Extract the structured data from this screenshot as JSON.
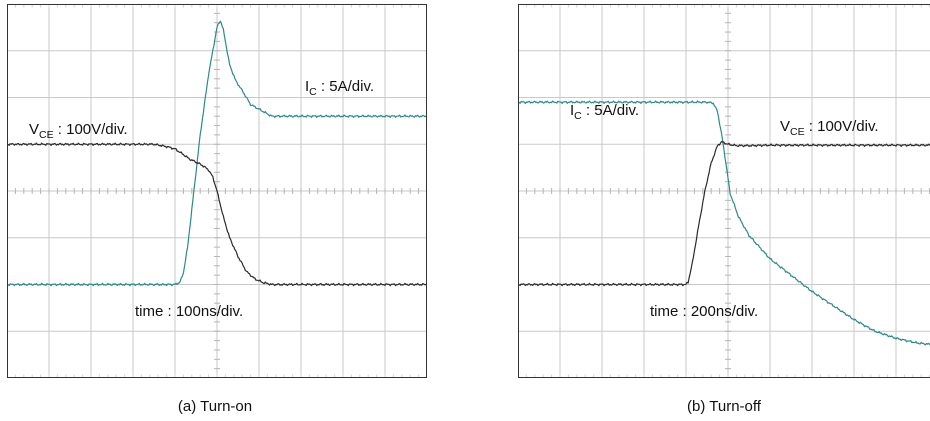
{
  "chart_data": [
    {
      "type": "line",
      "title": "(a) Turn-on",
      "grid": true,
      "grid_divisions": {
        "x": 10,
        "y": 8
      },
      "annotations": {
        "ic": {
          "main": "I",
          "sub": "C",
          "rest": " : 5A/div."
        },
        "vce": {
          "main": "V",
          "sub": "CE",
          "rest": " : 100V/div."
        },
        "time": "time : 100ns/div."
      },
      "xlim": [
        0,
        10
      ],
      "ylim": [
        -4,
        4
      ],
      "series": [
        {
          "color": "#2a8a8a",
          "x": [
            0,
            4.0,
            4.12,
            4.2,
            4.3,
            4.45,
            4.6,
            4.8,
            5.0,
            5.08,
            5.15,
            5.3,
            5.45,
            5.6,
            5.8,
            6.0,
            6.2,
            6.3,
            7.0,
            8.0,
            9.0,
            10.0
          ],
          "y": [
            -2.0,
            -2.0,
            -1.95,
            -1.75,
            -1.2,
            0.0,
            1.2,
            2.5,
            3.5,
            3.65,
            3.45,
            2.7,
            2.35,
            2.15,
            1.85,
            1.75,
            1.65,
            1.6,
            1.6,
            1.6,
            1.6,
            1.6
          ]
        },
        {
          "color": "#2b2b2b",
          "x": [
            0,
            3.5,
            3.8,
            4.0,
            4.2,
            4.35,
            4.5,
            4.65,
            4.8,
            4.9,
            5.0,
            5.15,
            5.3,
            5.5,
            5.7,
            5.9,
            6.1,
            6.3,
            6.6,
            7.0,
            8.0,
            9.0,
            10.0
          ],
          "y": [
            1.0,
            1.0,
            0.95,
            0.9,
            0.78,
            0.68,
            0.62,
            0.55,
            0.45,
            0.3,
            0.0,
            -0.55,
            -1.0,
            -1.4,
            -1.72,
            -1.88,
            -1.96,
            -2.0,
            -2.0,
            -2.0,
            -2.0,
            -2.0,
            -2.0
          ]
        }
      ]
    },
    {
      "type": "line",
      "title": "(b) Turn-off",
      "grid": true,
      "grid_divisions": {
        "x": 10,
        "y": 8
      },
      "annotations": {
        "ic": {
          "main": "I",
          "sub": "C",
          "rest": " : 5A/div."
        },
        "vce": {
          "main": "V",
          "sub": "CE",
          "rest": " : 100V/div."
        },
        "time": "time : 200ns/div."
      },
      "xlim": [
        0,
        10
      ],
      "ylim": [
        -4,
        4
      ],
      "series": [
        {
          "color": "#2a8a8a",
          "x": [
            0,
            4.5,
            4.65,
            4.75,
            4.85,
            4.95,
            5.05,
            5.25,
            5.5,
            6.0,
            6.5,
            7.0,
            7.5,
            8.0,
            8.5,
            9.0,
            9.5,
            10.0
          ],
          "y": [
            1.9,
            1.9,
            1.88,
            1.7,
            1.2,
            0.6,
            -0.05,
            -0.55,
            -0.95,
            -1.45,
            -1.8,
            -2.15,
            -2.45,
            -2.75,
            -3.0,
            -3.15,
            -3.25,
            -3.3
          ],
          "xnote": "tail continues decaying, reaching ~-2.0 at right edge in original scaling"
        },
        {
          "color": "#2b2b2b",
          "x": [
            0,
            4.0,
            4.05,
            4.15,
            4.3,
            4.45,
            4.6,
            4.75,
            4.85,
            5.0,
            5.2,
            5.5,
            6.0,
            7.0,
            8.0,
            9.0,
            10.0
          ],
          "y": [
            -2.0,
            -2.0,
            -1.95,
            -1.55,
            -0.75,
            0.0,
            0.6,
            0.97,
            1.05,
            1.0,
            0.97,
            0.97,
            0.98,
            0.98,
            0.98,
            0.98,
            0.98
          ]
        }
      ]
    }
  ]
}
